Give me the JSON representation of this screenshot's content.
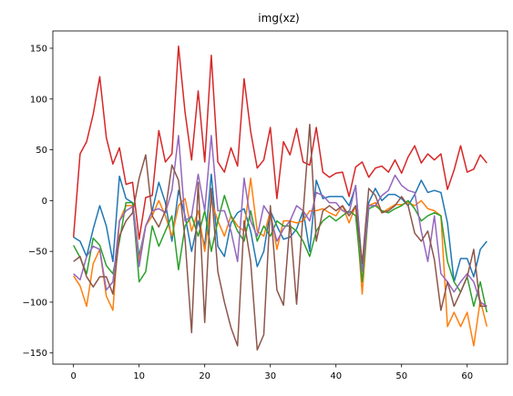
{
  "chart_data": {
    "type": "line",
    "title": "img(xz)",
    "xlabel": "",
    "ylabel": "",
    "xlim": [
      -3.15,
      66.15
    ],
    "ylim": [
      -161,
      167
    ],
    "xticks": [
      0,
      10,
      20,
      30,
      40,
      50,
      60
    ],
    "yticks": [
      -150,
      -100,
      -50,
      0,
      50,
      100,
      150
    ],
    "grid": false,
    "x": [
      0,
      1,
      2,
      3,
      4,
      5,
      6,
      7,
      8,
      9,
      10,
      11,
      12,
      13,
      14,
      15,
      16,
      17,
      18,
      19,
      20,
      21,
      22,
      23,
      24,
      25,
      26,
      27,
      28,
      29,
      30,
      31,
      32,
      33,
      34,
      35,
      36,
      37,
      38,
      39,
      40,
      41,
      42,
      43,
      44,
      45,
      46,
      47,
      48,
      49,
      50,
      51,
      52,
      53,
      54,
      55,
      56,
      57,
      58,
      59,
      60,
      61,
      62,
      63
    ],
    "series": [
      {
        "color": "#1f77b4",
        "values": [
          -36,
          -40,
          -55,
          -28,
          -5,
          -25,
          -60,
          24,
          2,
          -2,
          -55,
          -25,
          -10,
          18,
          -2,
          -40,
          10,
          -15,
          -50,
          -20,
          -45,
          26,
          -45,
          -55,
          -22,
          -12,
          -8,
          -30,
          -65,
          -50,
          -10,
          -25,
          -38,
          -36,
          -28,
          -10,
          -50,
          20,
          2,
          4,
          4,
          4,
          -5,
          14,
          -65,
          -2,
          12,
          0,
          6,
          6,
          2,
          -5,
          6,
          20,
          8,
          10,
          8,
          -22,
          -80,
          -57,
          -57,
          -75,
          -48,
          -40
        ]
      },
      {
        "color": "#ff7f0e",
        "values": [
          -74,
          -84,
          -104,
          -62,
          -48,
          -94,
          -108,
          -20,
          -5,
          -5,
          -60,
          -25,
          -15,
          0,
          -15,
          -35,
          -5,
          2,
          -30,
          -10,
          -50,
          0,
          -20,
          -35,
          -15,
          -25,
          -30,
          22,
          -30,
          -35,
          -10,
          -48,
          -20,
          -20,
          -22,
          -20,
          -10,
          -10,
          -8,
          -12,
          -15,
          -5,
          -22,
          -5,
          -92,
          -5,
          -2,
          -12,
          -8,
          -4,
          -4,
          -2,
          -5,
          0,
          -8,
          -10,
          -15,
          -124,
          -110,
          -124,
          -110,
          -143,
          -98,
          -124
        ]
      },
      {
        "color": "#2ca02c",
        "values": [
          -44,
          -56,
          -72,
          -37,
          -44,
          -64,
          -72,
          -40,
          -2,
          -2,
          -80,
          -70,
          -25,
          -45,
          -30,
          -15,
          -68,
          -25,
          -15,
          -35,
          -10,
          -50,
          -20,
          5,
          -15,
          -30,
          -40,
          -10,
          -40,
          -25,
          -35,
          -20,
          -25,
          -25,
          -30,
          -40,
          -55,
          -30,
          -20,
          -15,
          -20,
          -15,
          -10,
          -15,
          -80,
          -8,
          -5,
          -10,
          -12,
          -8,
          -5,
          0,
          -8,
          -20,
          -15,
          -12,
          -15,
          -60,
          -80,
          -90,
          -75,
          -104,
          -80,
          -110
        ]
      },
      {
        "color": "#d62728",
        "values": [
          -36,
          46,
          58,
          85,
          122,
          62,
          36,
          52,
          16,
          18,
          -38,
          3,
          5,
          69,
          38,
          46,
          152,
          87,
          40,
          108,
          38,
          143,
          38,
          28,
          52,
          34,
          120,
          68,
          32,
          40,
          72,
          2,
          58,
          45,
          71,
          38,
          35,
          72,
          28,
          23,
          27,
          28,
          4,
          33,
          38,
          23,
          32,
          34,
          28,
          40,
          27,
          43,
          54,
          37,
          46,
          40,
          46,
          11,
          30,
          54,
          28,
          31,
          45,
          37
        ]
      },
      {
        "color": "#9467bd",
        "values": [
          -72,
          -78,
          -55,
          -45,
          -48,
          -88,
          -80,
          -20,
          -10,
          -6,
          -65,
          -25,
          -10,
          -8,
          -12,
          10,
          64,
          -20,
          -15,
          26,
          -10,
          64,
          -10,
          -10,
          -30,
          -60,
          22,
          -20,
          -35,
          -5,
          -15,
          -40,
          -28,
          -20,
          -5,
          -10,
          -20,
          8,
          5,
          -2,
          -2,
          -10,
          -12,
          15,
          -70,
          -5,
          -5,
          5,
          10,
          25,
          15,
          10,
          8,
          -30,
          -60,
          -15,
          -72,
          -80,
          -90,
          -80,
          -72,
          -80,
          -100,
          -104
        ]
      },
      {
        "color": "#8c564b",
        "values": [
          -60,
          -55,
          -75,
          -85,
          -75,
          -75,
          -92,
          -35,
          -20,
          -12,
          22,
          45,
          -15,
          -26,
          -10,
          35,
          20,
          -38,
          -130,
          18,
          -120,
          12,
          -70,
          -100,
          -125,
          -143,
          -20,
          -60,
          -147,
          -132,
          -5,
          -88,
          -103,
          -20,
          -102,
          -12,
          75,
          -40,
          -10,
          -5,
          -10,
          -5,
          -15,
          -5,
          -62,
          12,
          5,
          -12,
          -10,
          -5,
          4,
          -5,
          -32,
          -40,
          -30,
          -58,
          -108,
          -80,
          -104,
          -90,
          -75,
          -48,
          -104,
          -104
        ]
      }
    ]
  }
}
